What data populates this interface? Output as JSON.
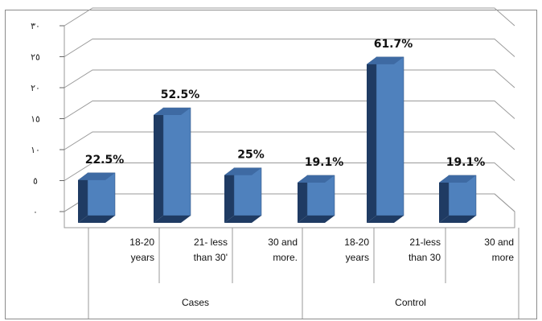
{
  "chart_data": {
    "type": "bar",
    "title": "",
    "xlabel": "",
    "ylabel": "",
    "ylim": [
      0,
      30
    ],
    "yticks": [
      "٠",
      "٥",
      "١٠",
      "١٥",
      "٢٠",
      "٢٥",
      "٣٠"
    ],
    "grid": true,
    "legend": "none",
    "groups": [
      {
        "name": "Cases",
        "categories": [
          {
            "line1": "18-20",
            "line2": "years"
          },
          {
            "line1": "21- less",
            "line2": "than 30'"
          },
          {
            "line1": "30 and",
            "line2": "more."
          }
        ],
        "values": [
          6.9,
          17.4,
          7.7
        ],
        "labels": [
          "22.5%",
          "52.5%",
          "25%"
        ]
      },
      {
        "name": "Control",
        "categories": [
          {
            "line1": "18-20",
            "line2": "years"
          },
          {
            "line1": "21-less",
            "line2": "than 30"
          },
          {
            "line1": "30 and",
            "line2": "more"
          }
        ],
        "values": [
          6.5,
          25.6,
          6.5
        ],
        "labels": [
          "19.1%",
          "61.7%",
          "19.1%"
        ]
      }
    ],
    "colors": {
      "bar_front": "#4f81bd",
      "bar_side": "#1f3b63",
      "bar_top": "#3e6aa3",
      "grid": "#9a9a9a"
    }
  }
}
